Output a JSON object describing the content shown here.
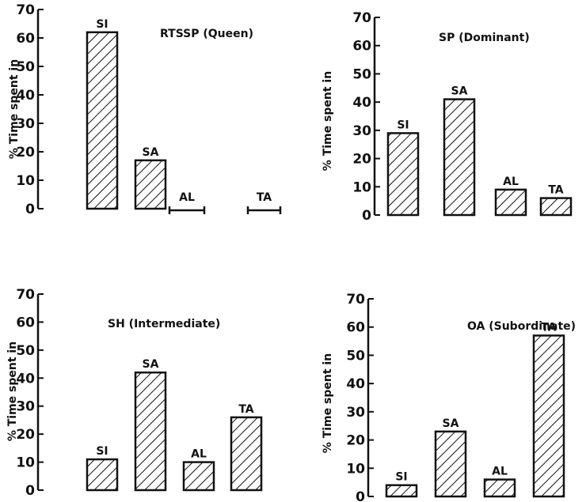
{
  "chart_data": [
    {
      "type": "bar",
      "title": "RTSSP (Queen)",
      "ylabel": "% Time spent in",
      "ylim": [
        0,
        70
      ],
      "yticks": [
        0,
        10,
        20,
        30,
        40,
        50,
        60,
        70
      ],
      "categories": [
        "SI",
        "SA",
        "AL",
        "TA"
      ],
      "values": [
        62,
        17,
        0,
        0
      ]
    },
    {
      "type": "bar",
      "title": "SP (Dominant)",
      "ylabel": "% Time spent in",
      "ylim": [
        0,
        70
      ],
      "yticks": [
        0,
        10,
        20,
        30,
        40,
        50,
        60,
        70
      ],
      "categories": [
        "SI",
        "SA",
        "AL",
        "TA"
      ],
      "values": [
        29,
        41,
        9,
        6
      ]
    },
    {
      "type": "bar",
      "title": "SH (Intermediate)",
      "ylabel": "% Time spent in",
      "ylim": [
        0,
        70
      ],
      "yticks": [
        0,
        10,
        20,
        30,
        40,
        50,
        60,
        70
      ],
      "categories": [
        "SI",
        "SA",
        "AL",
        "TA"
      ],
      "values": [
        11,
        42,
        10,
        26
      ]
    },
    {
      "type": "bar",
      "title": "OA (Subordinate)",
      "ylabel": "% Time spent in",
      "ylim": [
        0,
        70
      ],
      "yticks": [
        0,
        10,
        20,
        30,
        40,
        50,
        60,
        70
      ],
      "categories": [
        "SI",
        "SA",
        "AL",
        "TA"
      ],
      "values": [
        4,
        23,
        6,
        57
      ]
    }
  ]
}
